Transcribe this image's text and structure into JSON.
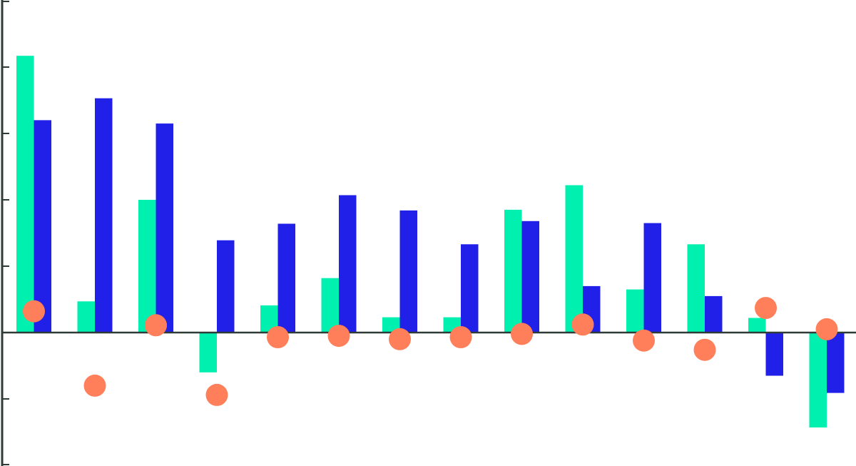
{
  "chart_data": {
    "type": "bar",
    "categories": [
      "",
      "",
      "",
      "",
      "",
      "",
      "",
      "",
      "",
      "",
      "",
      "",
      "",
      ""
    ],
    "series": [
      {
        "kind": "bar",
        "color": "#00F0B0",
        "values": [
          4.17,
          0.47,
          2.0,
          -0.6,
          0.41,
          0.82,
          0.23,
          0.23,
          1.85,
          2.22,
          0.65,
          1.33,
          0.22,
          -1.43
        ]
      },
      {
        "kind": "bar",
        "color": "#2020E8",
        "values": [
          3.2,
          3.53,
          3.15,
          1.39,
          1.64,
          2.07,
          1.84,
          1.33,
          1.68,
          0.7,
          1.65,
          0.55,
          -0.65,
          -0.91
        ]
      },
      {
        "kind": "scatter",
        "color": "#FF7F5A",
        "values": [
          0.32,
          -0.8,
          0.11,
          -0.94,
          -0.07,
          -0.05,
          -0.1,
          -0.07,
          -0.02,
          0.12,
          -0.12,
          -0.26,
          0.37,
          0.05
        ]
      }
    ],
    "ylim": [
      -2.0,
      5.0
    ],
    "yticks": [
      -1,
      0,
      1,
      2,
      3,
      4
    ],
    "ytick_labels_visible": false,
    "xtick_labels_visible": false,
    "grid": false,
    "legend": "none",
    "axis_color": "#2E3B36"
  }
}
